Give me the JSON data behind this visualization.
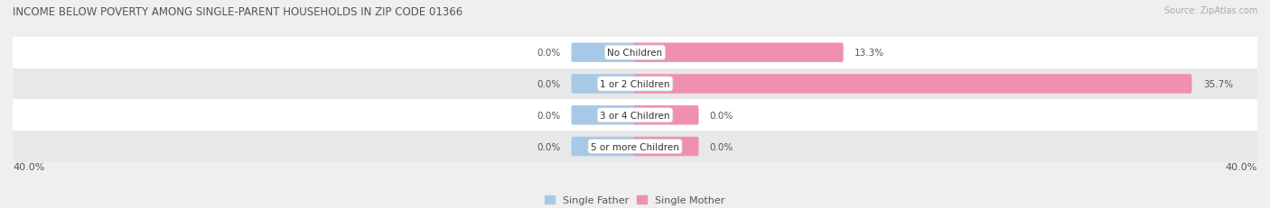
{
  "title": "INCOME BELOW POVERTY AMONG SINGLE-PARENT HOUSEHOLDS IN ZIP CODE 01366",
  "source": "Source: ZipAtlas.com",
  "categories": [
    "No Children",
    "1 or 2 Children",
    "3 or 4 Children",
    "5 or more Children"
  ],
  "single_father": [
    0.0,
    0.0,
    0.0,
    0.0
  ],
  "single_mother": [
    13.3,
    35.7,
    0.0,
    0.0
  ],
  "xlim": [
    -40,
    40
  ],
  "father_color": "#a8c8e8",
  "mother_color": "#f090b0",
  "bar_height": 0.62,
  "bg_color": "#efefef",
  "row_colors": [
    "#ffffff",
    "#e8e8e8",
    "#ffffff",
    "#e8e8e8"
  ],
  "title_fontsize": 8.5,
  "label_fontsize": 7.5,
  "value_fontsize": 7.5,
  "tick_fontsize": 8,
  "source_fontsize": 7,
  "legend_fontsize": 8
}
